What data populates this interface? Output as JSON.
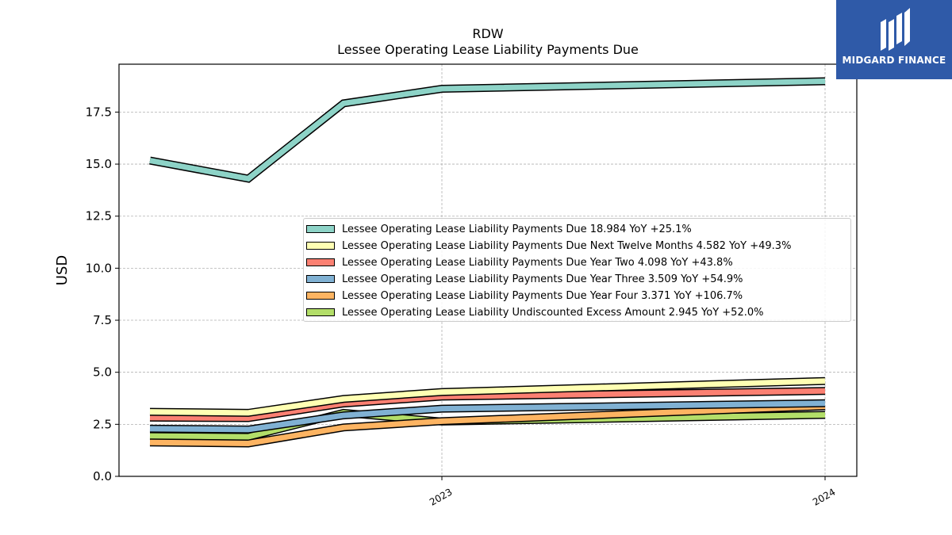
{
  "chart_data": {
    "type": "line",
    "title": "RDW",
    "subtitle": "Lessee Operating Lease Liability Payments Due",
    "xlabel": "",
    "ylabel": "USD",
    "ylim": [
      0,
      19.8
    ],
    "x_tick_labels": [
      "2023",
      "2024"
    ],
    "y_tick_labels": [
      "0.0",
      "2.5",
      "5.0",
      "7.5",
      "10.0",
      "12.5",
      "15.0",
      "17.5"
    ],
    "y_ticks": [
      0,
      2.5,
      5.0,
      7.5,
      10.0,
      12.5,
      15.0,
      17.5
    ],
    "grid": true,
    "legend_position": "center-right",
    "x": [
      "2022-03",
      "2022-06",
      "2022-09",
      "2022-12",
      "2023-12"
    ],
    "series": [
      {
        "name": "Lessee Operating Lease Liability Payments Due",
        "legend": "Lessee Operating Lease Liability Payments Due  18.984 YoY +25.1%",
        "color": "#8dd3c7",
        "values": [
          15.17,
          14.3,
          17.92,
          18.62,
          18.98
        ]
      },
      {
        "name": "Lessee Operating Lease Liability Payments Due Next Twelve Months",
        "legend": "Lessee Operating Lease Liability Payments Due Next Twelve Months  4.582 YoY +49.3%",
        "color": "#ffffb3",
        "values": [
          3.1,
          3.05,
          3.72,
          4.05,
          4.58
        ]
      },
      {
        "name": "Lessee Operating Lease Liability Payments Due Year Two",
        "legend": "Lessee Operating Lease Liability Payments Due Year Two  4.098 YoY +43.8%",
        "color": "#fb8072",
        "values": [
          2.82,
          2.8,
          3.5,
          3.83,
          4.1
        ]
      },
      {
        "name": "Lessee Operating Lease Liability Payments Due Year Three",
        "legend": "Lessee Operating Lease Liability Payments Due Year Three  3.509 YoY +54.9%",
        "color": "#80b1d3",
        "values": [
          2.29,
          2.25,
          2.93,
          3.25,
          3.51
        ]
      },
      {
        "name": "Lessee Operating Lease Liability Payments Due Year Four",
        "legend": "Lessee Operating Lease Liability Payments Due Year Four  3.371 YoY +106.7%",
        "color": "#fdb462",
        "values": [
          1.63,
          1.58,
          2.35,
          2.65,
          3.37
        ]
      },
      {
        "name": "Lessee Operating Lease Liability Undiscounted Excess Amount",
        "legend": "Lessee Operating Lease Liability Undiscounted Excess Amount  2.945 YoY +52.0%",
        "color": "#b3de69",
        "values": [
          1.94,
          1.9,
          3.05,
          2.63,
          2.95
        ]
      }
    ]
  },
  "logo": {
    "text": "MIDGARD FINANCE",
    "color": "#2f5aa8"
  }
}
